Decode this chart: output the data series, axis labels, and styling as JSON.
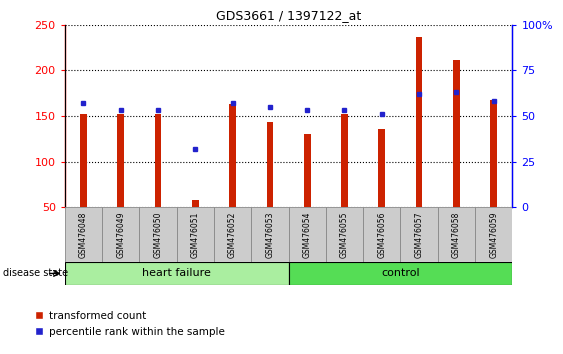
{
  "title": "GDS3661 / 1397122_at",
  "categories": [
    "GSM476048",
    "GSM476049",
    "GSM476050",
    "GSM476051",
    "GSM476052",
    "GSM476053",
    "GSM476054",
    "GSM476055",
    "GSM476056",
    "GSM476057",
    "GSM476058",
    "GSM476059"
  ],
  "red_values": [
    152,
    152,
    152,
    58,
    163,
    143,
    130,
    152,
    136,
    237,
    211,
    168
  ],
  "blue_values_pct": [
    57,
    53,
    53,
    32,
    57,
    55,
    53,
    53,
    51,
    62,
    63,
    58
  ],
  "ylim_left": [
    50,
    250
  ],
  "ylim_right": [
    0,
    100
  ],
  "yticks_left": [
    50,
    100,
    150,
    200,
    250
  ],
  "yticks_right": [
    0,
    25,
    50,
    75,
    100
  ],
  "heart_failure_count": 6,
  "control_count": 6,
  "bar_color": "#cc2200",
  "dot_color": "#2222cc",
  "hf_bg": "#aaeea0",
  "ctrl_bg": "#55dd55",
  "xticklabel_bg": "#cccccc",
  "legend_red": "transformed count",
  "legend_blue": "percentile rank within the sample",
  "disease_state_label": "disease state",
  "hf_label": "heart failure",
  "ctrl_label": "control",
  "bar_width": 0.18
}
